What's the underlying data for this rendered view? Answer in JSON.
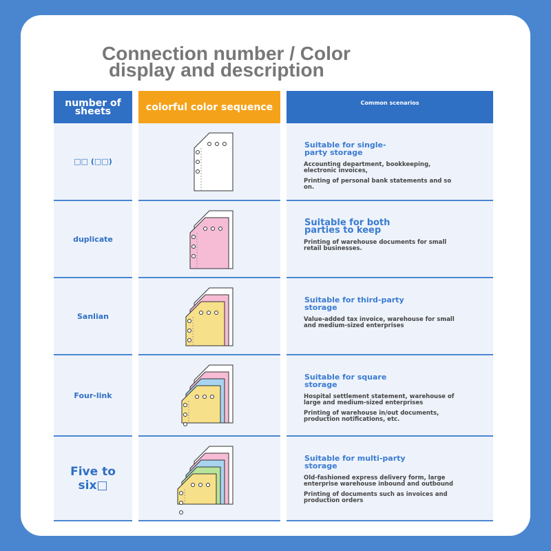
{
  "title": {
    "line1": "Connection number / Color",
    "line2": "display and description"
  },
  "table": {
    "headers": [
      "number of sheets",
      "colorful color sequence",
      "Common scenarios"
    ],
    "rows": [
      {
        "sheets": "□□ (□□)",
        "colors": [
          "#ffffff"
        ],
        "scenario": "Suitable for single-party storage",
        "details": [
          "Accounting department, bookkeeping, electronic invoices,",
          "Printing of personal bank statements and so on."
        ]
      },
      {
        "sheets": "duplicate",
        "colors": [
          "#ffffff",
          "#f6bcd6"
        ],
        "scenario": "Suitable for both parties to keep",
        "details": [
          "Printing of warehouse documents for small retail businesses."
        ]
      },
      {
        "sheets": "Sanlian",
        "colors": [
          "#ffffff",
          "#f6bcd6",
          "#f7e08a"
        ],
        "scenario": "Suitable for third-party storage",
        "details": [
          "Value-added tax invoice, warehouse for small and medium-sized enterprises"
        ]
      },
      {
        "sheets": "Four-link",
        "colors": [
          "#ffffff",
          "#f6bcd6",
          "#a9d4ef",
          "#f7e08a"
        ],
        "scenario": "Suitable for square storage",
        "details": [
          "Hospital settlement statement, warehouse of large and medium-sized enterprises",
          "Printing of warehouse in/out documents, production notifications, etc."
        ]
      },
      {
        "sheets": "Five to six□",
        "colors": [
          "#ffffff",
          "#f6bcd6",
          "#a9d4ef",
          "#b9e39a",
          "#f7e08a"
        ],
        "scenario": "Suitable for multi-party storage",
        "details": [
          "Old-fashioned express delivery form, large enterprise warehouse inbound and outbound",
          "Printing of documents such as invoices and production orders"
        ]
      }
    ]
  }
}
